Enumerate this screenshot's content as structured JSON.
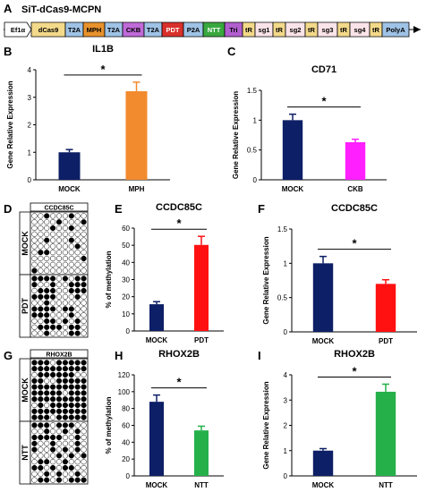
{
  "construct": {
    "panel_label": "A",
    "title": "SiT-dCas9-MCPN",
    "segments": [
      {
        "label": "Ef1α",
        "color": "#ffffff"
      },
      {
        "label": "dCas9",
        "color": "#f3d98a"
      },
      {
        "label": "T2A",
        "color": "#9fc3e6"
      },
      {
        "label": "MPH",
        "color": "#e8922d"
      },
      {
        "label": "T2A",
        "color": "#9fc3e6"
      },
      {
        "label": "CKB",
        "color": "#c06ad8"
      },
      {
        "label": "T2A",
        "color": "#9fc3e6"
      },
      {
        "label": "PDT",
        "color": "#d9302b"
      },
      {
        "label": "P2A",
        "color": "#9fc3e6"
      },
      {
        "label": "NTT",
        "color": "#39a83f"
      },
      {
        "label": "Tri",
        "color": "#b15fcf"
      },
      {
        "label": "tR",
        "color": "#f3d98a"
      },
      {
        "label": "sg1",
        "color": "#fbe4e9"
      },
      {
        "label": "tR",
        "color": "#f3d98a"
      },
      {
        "label": "sg2",
        "color": "#fbe4e9"
      },
      {
        "label": "tR",
        "color": "#f3d98a"
      },
      {
        "label": "sg3",
        "color": "#fbe4e9"
      },
      {
        "label": "tR",
        "color": "#f3d98a"
      },
      {
        "label": "sg4",
        "color": "#fbe4e9"
      },
      {
        "label": "tR",
        "color": "#f3d98a"
      },
      {
        "label": "PolyA",
        "color": "#9fc3e6"
      }
    ]
  },
  "methylation": [
    {
      "panel_label": "D",
      "header": "CCDC85C",
      "groups": [
        "MOCK",
        "PDT"
      ]
    },
    {
      "panel_label": "G",
      "header": "RHOX2B",
      "groups": [
        "MOCK",
        "NTT"
      ]
    }
  ],
  "significance_marker": "*",
  "chart_data": [
    {
      "panel_label": "B",
      "type": "bar",
      "title": "IL1B",
      "ylabel": "Gene Relative Expression",
      "categories": [
        "MOCK",
        "MPH"
      ],
      "values": [
        1.0,
        3.22
      ],
      "errors": [
        0.1,
        0.33
      ],
      "colors": [
        "#0d1f66",
        "#f28a2e"
      ],
      "ylim": [
        0,
        4
      ],
      "yticks": [
        "0",
        "1",
        "2",
        "3",
        "4"
      ]
    },
    {
      "panel_label": "C",
      "type": "bar",
      "title": "CD71",
      "ylabel": "Gene Relative Expression",
      "categories": [
        "MOCK",
        "CKB"
      ],
      "values": [
        1.0,
        0.63
      ],
      "errors": [
        0.1,
        0.05
      ],
      "colors": [
        "#0d1f66",
        "#ff1fff"
      ],
      "ylim": [
        0,
        1.5
      ],
      "yticks": [
        "0",
        "0.5",
        "1",
        "1.5"
      ]
    },
    {
      "panel_label": "E",
      "type": "bar",
      "title": "CCDC85C",
      "ylabel": "% of methylation",
      "categories": [
        "MOCK",
        "PDT"
      ],
      "values": [
        15.6,
        50.2
      ],
      "errors": [
        1.5,
        5.0
      ],
      "colors": [
        "#0d1f66",
        "#ff1111"
      ],
      "ylim": [
        0,
        60
      ],
      "yticks": [
        "0",
        "10",
        "20",
        "30",
        "40",
        "50",
        "60"
      ]
    },
    {
      "panel_label": "F",
      "type": "bar",
      "title": "CCDC85C",
      "ylabel": "Gene Relative Expression",
      "categories": [
        "MOCK",
        "PDT"
      ],
      "values": [
        1.0,
        0.7
      ],
      "errors": [
        0.1,
        0.06
      ],
      "colors": [
        "#0d1f66",
        "#ff1111"
      ],
      "ylim": [
        0,
        1.5
      ],
      "yticks": [
        "0",
        "0.5",
        "1",
        "1.5"
      ]
    },
    {
      "panel_label": "H",
      "type": "bar",
      "title": "RHOX2B",
      "ylabel": "% of methylation",
      "categories": [
        "MOCK",
        "NTT"
      ],
      "values": [
        88.0,
        54.0
      ],
      "errors": [
        8.0,
        5.0
      ],
      "colors": [
        "#0d1f66",
        "#25b04a"
      ],
      "ylim": [
        0,
        120
      ],
      "yticks": [
        "0",
        "20",
        "40",
        "60",
        "80",
        "100",
        "120"
      ]
    },
    {
      "panel_label": "I",
      "type": "bar",
      "title": "RHOX2B",
      "ylabel": "Gene Relative Expression",
      "categories": [
        "MOCK",
        "NTT"
      ],
      "values": [
        1.0,
        3.33
      ],
      "errors": [
        0.08,
        0.3
      ],
      "colors": [
        "#0d1f66",
        "#25b04a"
      ],
      "ylim": [
        0,
        4
      ],
      "yticks": [
        "0",
        "1",
        "2",
        "3",
        "4"
      ]
    }
  ]
}
